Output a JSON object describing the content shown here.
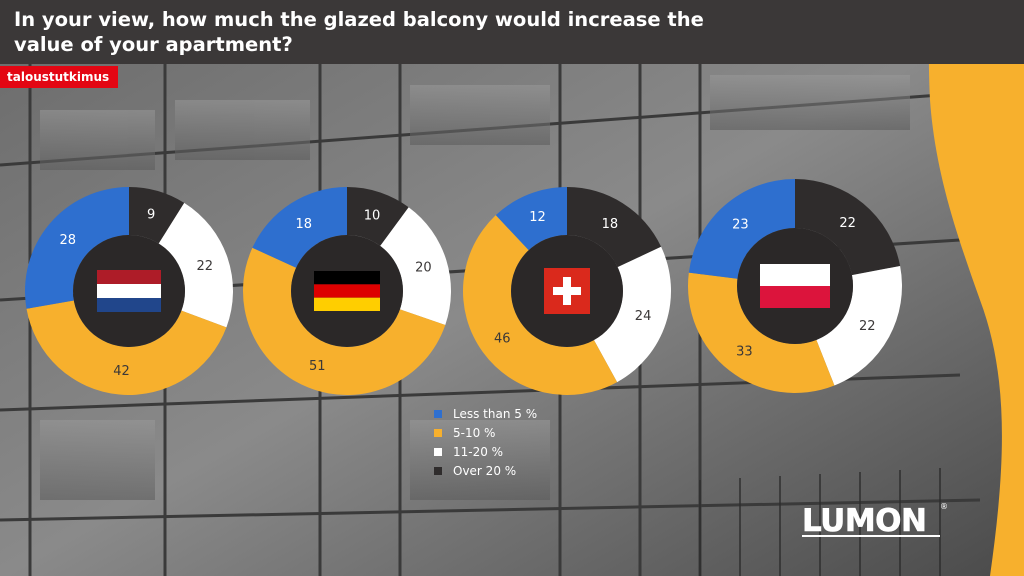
{
  "title": "In your view, how much the glazed balcony would increase the value of your apartment?",
  "tag": "taloustutkimus",
  "logo": {
    "name": "LUMON",
    "mark": "®"
  },
  "colors": {
    "less_than_5": "#2e6fcf",
    "5_10": "#f7b02d",
    "11_20": "#ffffff",
    "over_20": "#2f2c2c",
    "header": "#3b3838",
    "tag": "#e30613",
    "accent": "#f7b02d"
  },
  "chart_data": [
    {
      "type": "donut",
      "flag": "netherlands-flag",
      "categories": [
        "Less than 5 %",
        "5-10 %",
        "11-20 %",
        "Over 20 %"
      ],
      "values": [
        28,
        42,
        22,
        9
      ]
    },
    {
      "type": "donut",
      "flag": "germany-flag",
      "categories": [
        "Less than 5 %",
        "5-10 %",
        "11-20 %",
        "Over 20 %"
      ],
      "values": [
        18,
        51,
        20,
        10
      ]
    },
    {
      "type": "donut",
      "flag": "switzerland-flag",
      "categories": [
        "Less than 5 %",
        "5-10 %",
        "11-20 %",
        "Over 20 %"
      ],
      "values": [
        12,
        46,
        24,
        18
      ]
    },
    {
      "type": "donut",
      "flag": "poland-flag",
      "categories": [
        "Less than 5 %",
        "5-10 %",
        "11-20 %",
        "Over 20 %"
      ],
      "values": [
        23,
        33,
        22,
        22
      ]
    }
  ],
  "legend": [
    {
      "label": "Less than 5 %",
      "color": "#2e6fcf"
    },
    {
      "label": "5-10 %",
      "color": "#f7b02d"
    },
    {
      "label": "11-20 %",
      "color": "#ffffff"
    },
    {
      "label": "Over 20 %",
      "color": "#2f2c2c"
    }
  ]
}
